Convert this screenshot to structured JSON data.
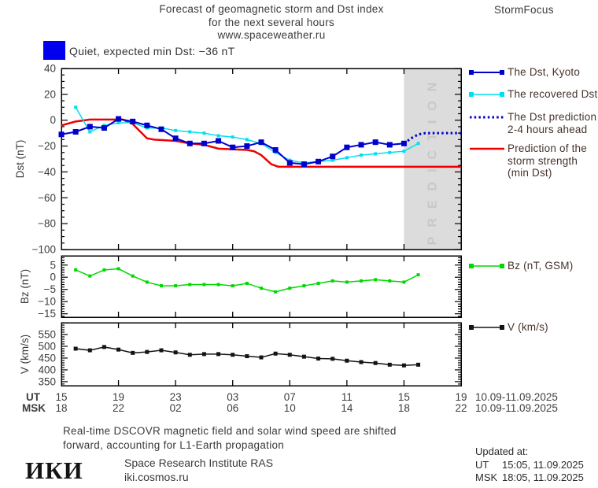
{
  "header": {
    "title_line1": "Forecast of geomagnetic storm and Dst index",
    "title_line2": "for the next several hours",
    "title_line3": "www.spaceweather.ru",
    "brand": "StormFocus"
  },
  "status": {
    "label": "Quiet, expected min Dst: −36 nT",
    "swatch_color": "#0000ee"
  },
  "legend": {
    "dst_kyoto": "The Dst, Kyoto",
    "recovered": "The recovered Dst",
    "prediction_l1": "The Dst prediction",
    "prediction_l2": "2-4 hours ahead",
    "storm_l1": "Prediction of the",
    "storm_l2": "storm strength",
    "storm_l3": "(min Dst)",
    "bz": "Bz (nT, GSM)",
    "v": "V (km/s)"
  },
  "footer": {
    "note_l1": "Real-time DSCOVR magnetic field and solar wind speed are shifted",
    "note_l2": "forward, accounting for L1-Earth propagation",
    "logo": "ИКИ",
    "institute": "Space Research Institute RAS",
    "site": "iki.cosmos.ru",
    "updated_label": "Updated at:",
    "updated_ut_label": "UT",
    "updated_ut_value": "15:05, 11.09.2025",
    "updated_msk_label": "MSK",
    "updated_msk_value": "18:05, 11.09.2025"
  },
  "chart_data": [
    {
      "type": "line",
      "title": "Dst index observed, recovered and predicted",
      "ylabel": "Dst (nT)",
      "ylim": [
        40,
        -100
      ],
      "yticks": [
        40,
        20,
        0,
        -20,
        -40,
        -60,
        -80,
        -100
      ],
      "xaxis": {
        "xlim_hours": [
          0,
          28
        ],
        "tick_hours": [
          0,
          4,
          8,
          12,
          16,
          20,
          24,
          28
        ],
        "ut_label": "UT",
        "msk_label": "MSK",
        "ut_ticks": [
          "15",
          "19",
          "23",
          "03",
          "07",
          "11",
          "15",
          "19"
        ],
        "msk_ticks": [
          "18",
          "22",
          "02",
          "06",
          "10",
          "14",
          "18",
          "22"
        ],
        "ut_date": "10.09-11.09.2025",
        "msk_date": "10.09-11.09.2025"
      },
      "prediction_band": {
        "label": "PREDICTION",
        "from_hour": 24,
        "to_hour": 28,
        "fill": "#dcdcdc",
        "text_color": "#c8c8c8"
      },
      "series": [
        {
          "name": "storm-strength-prediction",
          "label": "Prediction of the storm strength (min Dst)",
          "color": "#ed0000",
          "width": 2.5,
          "x": [
            0,
            1,
            2,
            4.3,
            5,
            6,
            6.5,
            8,
            9,
            10,
            11,
            13,
            13.5,
            14,
            14.7,
            15.2,
            28
          ],
          "y": [
            -4,
            -1,
            0.5,
            0.5,
            -3,
            -14,
            -15,
            -16,
            -18,
            -19,
            -22,
            -23,
            -24,
            -27,
            -34,
            -36,
            -36
          ]
        },
        {
          "name": "recovered-dst",
          "label": "The recovered Dst",
          "color": "#00dfef",
          "width": 1.5,
          "marker_size": 4,
          "x": [
            1,
            2,
            3,
            4,
            5,
            6,
            7,
            8,
            9,
            10,
            11,
            12,
            13,
            14,
            15,
            16,
            17,
            18,
            19,
            20,
            21,
            22,
            23,
            24,
            25
          ],
          "y": [
            10,
            -9,
            -4,
            -2,
            -2,
            -6,
            -6,
            -8,
            -9,
            -10,
            -12,
            -13,
            -15,
            -18,
            -25,
            -31,
            -33,
            -32,
            -31,
            -29,
            -27,
            -26,
            -25,
            -24,
            -18
          ]
        },
        {
          "name": "dst-kyoto",
          "label": "The Dst, Kyoto",
          "color": "#0000cd",
          "width": 2,
          "marker_size": 7,
          "x": [
            0,
            1,
            2,
            3,
            4,
            5,
            6,
            7,
            8,
            9,
            10,
            11,
            12,
            13,
            14,
            15,
            16,
            17,
            18,
            19,
            20,
            21,
            22,
            23,
            24
          ],
          "y": [
            -11,
            -9,
            -5,
            -6,
            1,
            -1,
            -4,
            -7,
            -14,
            -18,
            -18,
            -16,
            -21,
            -20,
            -17,
            -23,
            -33,
            -34,
            -32,
            -28,
            -21,
            -19,
            -17,
            -19,
            -18
          ]
        },
        {
          "name": "dst-prediction",
          "label": "The Dst prediction 2-4 hours ahead",
          "color": "#0000cd",
          "width": 3,
          "dash": "2.5 3.2",
          "x": [
            24,
            24.5,
            25,
            25.5,
            26,
            28
          ],
          "y": [
            -18,
            -14,
            -11,
            -10,
            -10,
            -10
          ]
        }
      ]
    },
    {
      "type": "line",
      "title": "Bz component of interplanetary magnetic field",
      "ylabel": "Bz (nT)",
      "ylim": [
        8.8,
        -16.4
      ],
      "yticks": [
        5,
        0,
        -5,
        -10,
        -15
      ],
      "series": [
        {
          "name": "bz-gsm",
          "label": "Bz (nT, GSM)",
          "color": "#00d800",
          "width": 1.5,
          "marker_size": 4,
          "x": [
            1,
            2,
            3,
            4,
            5,
            6,
            7,
            8,
            9,
            10,
            11,
            12,
            13,
            14,
            15,
            16,
            17,
            18,
            19,
            20,
            21,
            22,
            23,
            24,
            25
          ],
          "y": [
            3,
            0.5,
            3,
            3.5,
            0.5,
            -2,
            -3.5,
            -3.5,
            -3,
            -3,
            -3,
            -3.5,
            -2.5,
            -4.5,
            -6,
            -4.5,
            -3.5,
            -2.5,
            -1.5,
            -2,
            -1.5,
            -1,
            -1.5,
            -2,
            1
          ]
        }
      ]
    },
    {
      "type": "line",
      "title": "Solar wind speed",
      "ylabel": "V (km/s)",
      "ylim": [
        600,
        333
      ],
      "yticks": [
        550,
        500,
        450,
        400,
        350
      ],
      "series": [
        {
          "name": "solar-wind-speed",
          "label": "V (km/s)",
          "color": "#141414",
          "width": 1.5,
          "marker_size": 5,
          "x": [
            1,
            2,
            3,
            4,
            5,
            6,
            7,
            8,
            9,
            10,
            11,
            12,
            13,
            14,
            15,
            16,
            17,
            18,
            19,
            20,
            21,
            22,
            23,
            24,
            25
          ],
          "y": [
            490,
            483,
            497,
            486,
            472,
            476,
            483,
            474,
            464,
            467,
            467,
            464,
            458,
            453,
            469,
            464,
            456,
            448,
            447,
            439,
            433,
            429,
            422,
            419,
            422
          ]
        }
      ]
    }
  ]
}
